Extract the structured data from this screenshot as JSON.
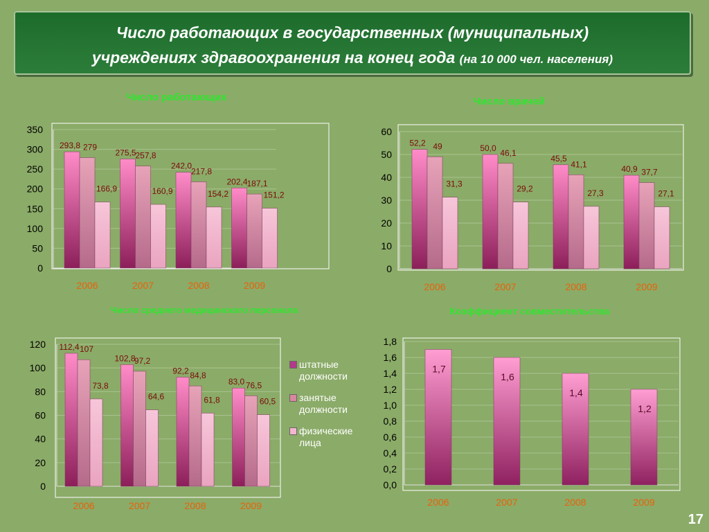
{
  "slide": {
    "title_line1": "Число работающих в государственных (муниципальных)",
    "title_line2": "учреждениях здравоохранения на конец года",
    "title_note": "(на 10 000 чел. населения)",
    "page_number": "17"
  },
  "legend": {
    "items": [
      "штатные должности",
      "занятые должности",
      "физические лица"
    ],
    "colors": [
      "#b23a8a",
      "#d9869f",
      "#f2b6cf"
    ]
  },
  "chart_data": [
    {
      "type": "bar",
      "title": "Число работающих",
      "categories": [
        "2006",
        "2007",
        "2008",
        "2009"
      ],
      "series": [
        {
          "name": "штатные должности",
          "values": [
            293.8,
            275.5,
            242.0,
            202.4
          ],
          "labels": [
            "293,8",
            "275,5",
            "242,0",
            "202,4"
          ]
        },
        {
          "name": "занятые должности",
          "values": [
            279,
            257.8,
            217.8,
            187.1
          ],
          "labels": [
            "279",
            "257,8",
            "217,8",
            "187,1"
          ]
        },
        {
          "name": "физические лица",
          "values": [
            166.9,
            160.9,
            154.2,
            151.2
          ],
          "labels": [
            "166,9",
            "160,9",
            "154,2",
            "151,2"
          ]
        }
      ],
      "ylim": [
        0,
        350
      ],
      "yticks": [
        "0",
        "50",
        "100",
        "150",
        "200",
        "250",
        "300",
        "350"
      ],
      "grid": true,
      "legend": "none"
    },
    {
      "type": "bar",
      "title": "Число врачей",
      "categories": [
        "2006",
        "2007",
        "2008",
        "2009"
      ],
      "series": [
        {
          "name": "штатные должности",
          "values": [
            52.2,
            50.0,
            45.5,
            40.9
          ],
          "labels": [
            "52,2",
            "50,0",
            "45,5",
            "40,9"
          ]
        },
        {
          "name": "занятые должности",
          "values": [
            49,
            46.1,
            41.1,
            37.7
          ],
          "labels": [
            "49",
            "46,1",
            "41,1",
            "37,7"
          ]
        },
        {
          "name": "физические лица",
          "values": [
            31.3,
            29.2,
            27.3,
            27.1
          ],
          "labels": [
            "31,3",
            "29,2",
            "27,3",
            "27,1"
          ]
        }
      ],
      "ylim": [
        0,
        60
      ],
      "yticks": [
        "0",
        "10",
        "20",
        "30",
        "40",
        "50",
        "60"
      ],
      "grid": true,
      "legend": "none"
    },
    {
      "type": "bar",
      "title": "Число среднего медицинского персонала",
      "categories": [
        "2006",
        "2007",
        "2008",
        "2009"
      ],
      "series": [
        {
          "name": "штатные должности",
          "values": [
            112.4,
            102.8,
            92.2,
            83.0
          ],
          "labels": [
            "112,4",
            "102,8",
            "92,2",
            "83,0"
          ]
        },
        {
          "name": "занятые должности",
          "values": [
            107,
            97.2,
            84.8,
            76.5
          ],
          "labels": [
            "107",
            "97,2",
            "84,8",
            "76,5"
          ]
        },
        {
          "name": "физические лица",
          "values": [
            73.8,
            64.6,
            61.8,
            60.5
          ],
          "labels": [
            "73,8",
            "64,6",
            "61,8",
            "60,5"
          ]
        }
      ],
      "ylim": [
        0,
        120
      ],
      "yticks": [
        "0",
        "20",
        "40",
        "60",
        "80",
        "100",
        "120"
      ],
      "grid": true,
      "legend": "right"
    },
    {
      "type": "bar",
      "title": "Коэффициент совместительства",
      "categories": [
        "2006",
        "2007",
        "2008",
        "2009"
      ],
      "series": [
        {
          "name": "",
          "values": [
            1.7,
            1.6,
            1.4,
            1.2
          ],
          "labels": [
            "1,7",
            "1,6",
            "1,4",
            "1,2"
          ]
        }
      ],
      "ylim": [
        0,
        1.8
      ],
      "yticks": [
        "0,0",
        "0,2",
        "0,4",
        "0,6",
        "0,8",
        "1,0",
        "1,2",
        "1,4",
        "1,6",
        "1,8"
      ],
      "grid": true,
      "legend": "none"
    }
  ]
}
